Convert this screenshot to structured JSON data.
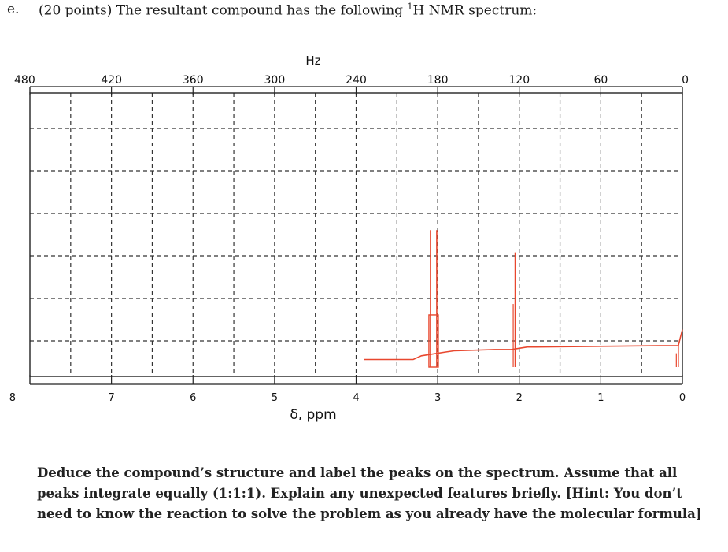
{
  "question": {
    "letter": "e.",
    "text_before": "(20 points) The resultant compound has the following ",
    "superscript": "1",
    "text_after": "H NMR spectrum:"
  },
  "description": "Deduce the compound’s structure and label the peaks on the spectrum. Assume that all peaks integrate equally (1:1:1). Explain any unexpected features briefly. [Hint: You don’t need  to know the reaction to solve the problem as you already have the molecular formula]",
  "chart_data": {
    "type": "line",
    "top_axis": {
      "label": "Hz",
      "ticks": [
        480,
        420,
        360,
        300,
        240,
        180,
        120,
        60,
        0
      ],
      "range": [
        480,
        0
      ]
    },
    "bottom_axis": {
      "label": "δ, ppm",
      "ticks": [
        8,
        7,
        6,
        5,
        4,
        3,
        2,
        1,
        0
      ],
      "range": [
        8,
        0
      ]
    },
    "grid": true,
    "spectrum_color": "#e8472e",
    "grid_color": "#333333",
    "ylim": [
      0,
      100
    ],
    "peaks": [
      {
        "ppm": 3.05,
        "height": 55,
        "shape": "doublet"
      },
      {
        "ppm": 2.05,
        "height": 46,
        "shape": "singlet"
      },
      {
        "ppm": 0.05,
        "height": 10,
        "shape": "singlet"
      }
    ],
    "integration_trace": {
      "x_ppm": [
        3.9,
        3.3,
        3.2,
        3.1,
        2.9,
        2.8,
        2.3,
        2.2,
        2.1,
        1.9,
        1.8,
        0.3,
        0.05,
        0.0
      ],
      "y": [
        3,
        3,
        4.5,
        5,
        6,
        6.5,
        7,
        7,
        7,
        8,
        8,
        8.5,
        8.5,
        15
      ]
    }
  }
}
